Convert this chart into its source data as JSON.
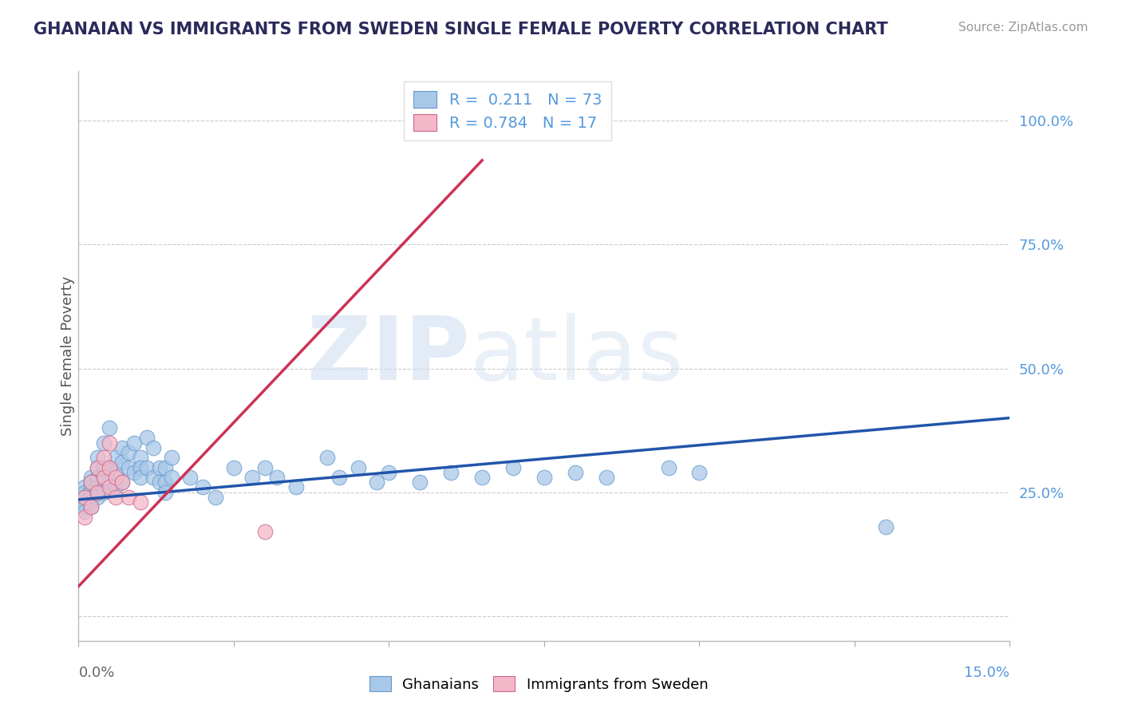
{
  "title": "GHANAIAN VS IMMIGRANTS FROM SWEDEN SINGLE FEMALE POVERTY CORRELATION CHART",
  "source": "Source: ZipAtlas.com",
  "ylabel": "Single Female Poverty",
  "legend1_r": "0.211",
  "legend1_n": "73",
  "legend2_r": "0.784",
  "legend2_n": "17",
  "watermark_zip": "ZIP",
  "watermark_atlas": "atlas",
  "blue_color": "#a8c8e8",
  "blue_edge_color": "#6699cc",
  "pink_color": "#f4b8c8",
  "pink_edge_color": "#cc6688",
  "blue_line_color": "#2255aa",
  "pink_line_color": "#cc3355",
  "text_color": "#2a2a5a",
  "right_axis_color": "#5599dd",
  "source_color": "#999999",
  "xlim": [
    0.0,
    0.15
  ],
  "ylim": [
    -0.05,
    1.1
  ],
  "right_yticks": [
    0.0,
    0.25,
    0.5,
    0.75,
    1.0
  ],
  "right_yticklabels": [
    "",
    "25.0%",
    "50.0%",
    "75.0%",
    "100.0%"
  ],
  "blue_x": [
    0.001,
    0.001,
    0.001,
    0.001,
    0.001,
    0.001,
    0.002,
    0.002,
    0.002,
    0.002,
    0.002,
    0.002,
    0.002,
    0.003,
    0.003,
    0.003,
    0.003,
    0.003,
    0.003,
    0.004,
    0.004,
    0.004,
    0.004,
    0.005,
    0.005,
    0.005,
    0.006,
    0.006,
    0.006,
    0.007,
    0.007,
    0.007,
    0.008,
    0.008,
    0.009,
    0.009,
    0.01,
    0.01,
    0.01,
    0.011,
    0.011,
    0.012,
    0.012,
    0.013,
    0.013,
    0.014,
    0.014,
    0.014,
    0.015,
    0.015,
    0.018,
    0.02,
    0.022,
    0.025,
    0.028,
    0.03,
    0.032,
    0.035,
    0.04,
    0.042,
    0.045,
    0.048,
    0.05,
    0.055,
    0.06,
    0.065,
    0.07,
    0.075,
    0.08,
    0.085,
    0.095,
    0.1,
    0.13
  ],
  "blue_y": [
    0.26,
    0.25,
    0.24,
    0.23,
    0.22,
    0.21,
    0.28,
    0.27,
    0.26,
    0.25,
    0.24,
    0.23,
    0.22,
    0.32,
    0.3,
    0.28,
    0.26,
    0.25,
    0.24,
    0.35,
    0.3,
    0.27,
    0.25,
    0.38,
    0.3,
    0.27,
    0.32,
    0.29,
    0.26,
    0.34,
    0.31,
    0.27,
    0.33,
    0.3,
    0.35,
    0.29,
    0.32,
    0.3,
    0.28,
    0.36,
    0.3,
    0.34,
    0.28,
    0.3,
    0.27,
    0.3,
    0.27,
    0.25,
    0.32,
    0.28,
    0.28,
    0.26,
    0.24,
    0.3,
    0.28,
    0.3,
    0.28,
    0.26,
    0.32,
    0.28,
    0.3,
    0.27,
    0.29,
    0.27,
    0.29,
    0.28,
    0.3,
    0.28,
    0.29,
    0.28,
    0.3,
    0.29,
    0.18
  ],
  "pink_x": [
    0.001,
    0.001,
    0.002,
    0.002,
    0.003,
    0.003,
    0.004,
    0.004,
    0.005,
    0.005,
    0.005,
    0.006,
    0.006,
    0.007,
    0.008,
    0.01,
    0.03
  ],
  "pink_y": [
    0.24,
    0.2,
    0.27,
    0.22,
    0.3,
    0.25,
    0.32,
    0.28,
    0.35,
    0.3,
    0.26,
    0.28,
    0.24,
    0.27,
    0.24,
    0.23,
    0.17
  ],
  "blue_line_x": [
    0.0,
    0.15
  ],
  "blue_line_y": [
    0.235,
    0.4
  ],
  "pink_line_x": [
    0.0,
    0.065
  ],
  "pink_line_y": [
    0.06,
    0.92
  ]
}
